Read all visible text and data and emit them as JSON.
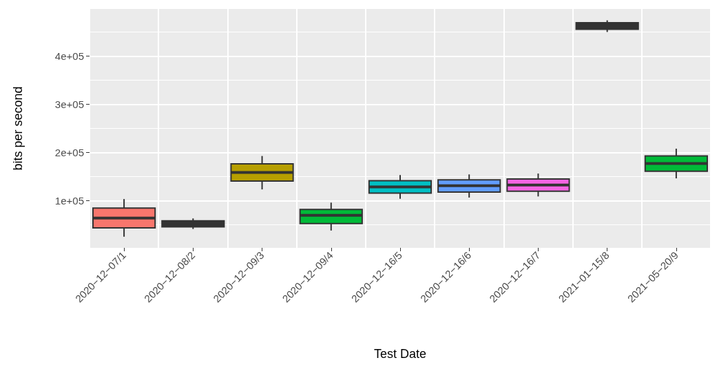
{
  "chart_data": {
    "type": "box",
    "xlabel": "Test Date",
    "ylabel": "bits per second",
    "categories": [
      "2020−12−07/1",
      "2020−12−08/2",
      "2020−12−09/3",
      "2020−12−09/4",
      "2020−12−16/5",
      "2020−12−16/6",
      "2020−12−16/7",
      "2021−01−15/8",
      "2021−05−20/9"
    ],
    "boxes": [
      {
        "low": 25600,
        "q1": 43800,
        "median": 64400,
        "q3": 84900,
        "high": 103700
      },
      {
        "low": 41600,
        "q1": 46100,
        "median": 55300,
        "q3": 58400,
        "high": 63500
      },
      {
        "low": 123700,
        "q1": 141100,
        "median": 158900,
        "q3": 176700,
        "high": 193000
      },
      {
        "low": 38400,
        "q1": 52900,
        "median": 69900,
        "q3": 82200,
        "high": 96300
      },
      {
        "low": 104100,
        "q1": 116000,
        "median": 128800,
        "q3": 141600,
        "high": 153400
      },
      {
        "low": 106800,
        "q1": 118300,
        "median": 131500,
        "q3": 143400,
        "high": 154800
      },
      {
        "low": 109100,
        "q1": 120100,
        "median": 132900,
        "q3": 145200,
        "high": 156600
      },
      {
        "low": 450200,
        "q1": 455700,
        "median": 462600,
        "q3": 469400,
        "high": 474400
      },
      {
        "low": 146600,
        "q1": 161200,
        "median": 177600,
        "q3": 193200,
        "high": 208200
      }
    ],
    "colors": [
      "#f8766d",
      "#333333",
      "#b79f00",
      "#00ba38",
      "#00bfc4",
      "#619cff",
      "#f564e3",
      "#333333",
      "#00ba38"
    ],
    "ylim": [
      2500,
      498000
    ],
    "yticks": [
      {
        "value": 100000,
        "label": "1e+05"
      },
      {
        "value": 200000,
        "label": "2e+05"
      },
      {
        "value": 300000,
        "label": "3e+05"
      },
      {
        "value": 400000,
        "label": "4e+05"
      }
    ],
    "grid": true
  }
}
